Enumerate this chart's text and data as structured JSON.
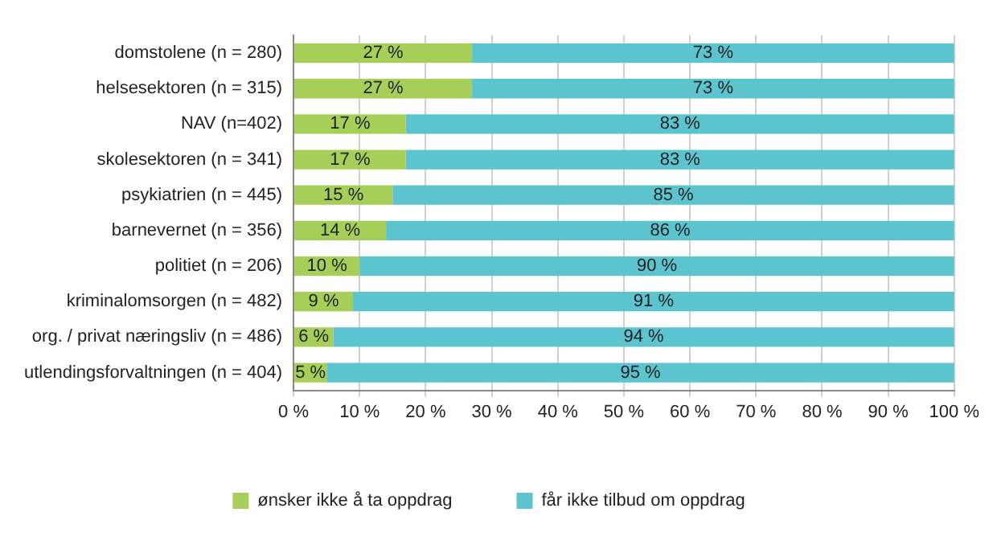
{
  "chart_data": {
    "type": "bar",
    "orientation": "horizontal",
    "stacked": true,
    "categories": [
      "domstolene (n = 280)",
      "helsesektoren (n = 315)",
      "NAV (n=402)",
      "skolesektoren (n = 341)",
      "psykiatrien (n = 445)",
      "barnevernet (n = 356)",
      "politiet (n = 206)",
      "kriminalomsorgen (n = 482)",
      "org. / privat næringsliv (n = 486)",
      "utlendingsforvaltningen (n = 404)"
    ],
    "series": [
      {
        "name": "ønsker ikke å ta oppdrag",
        "color": "#a6cf5a",
        "values": [
          27,
          27,
          17,
          17,
          15,
          14,
          10,
          9,
          6,
          5
        ],
        "value_labels": [
          "27 %",
          "27 %",
          "17 %",
          "17 %",
          "15 %",
          "14 %",
          "10 %",
          "9 %",
          "6 %",
          "5 %"
        ]
      },
      {
        "name": "får ikke tilbud om oppdrag",
        "color": "#5bc4cf",
        "values": [
          73,
          73,
          83,
          83,
          85,
          86,
          90,
          91,
          94,
          95
        ],
        "value_labels": [
          "73 %",
          "73 %",
          "83 %",
          "83 %",
          "85 %",
          "86 %",
          "90 %",
          "91 %",
          "94 %",
          "95 %"
        ]
      }
    ],
    "xlim": [
      0,
      100
    ],
    "xticks": [
      {
        "value": 0,
        "label": "0 %"
      },
      {
        "value": 10,
        "label": "10 %"
      },
      {
        "value": 20,
        "label": "20 %"
      },
      {
        "value": 30,
        "label": "30 %"
      },
      {
        "value": 40,
        "label": "40 %"
      },
      {
        "value": 50,
        "label": "50 %"
      },
      {
        "value": 60,
        "label": "60 %"
      },
      {
        "value": 70,
        "label": "70 %"
      },
      {
        "value": 80,
        "label": "80 %"
      },
      {
        "value": 90,
        "label": "90 %"
      },
      {
        "value": 100,
        "label": "100 %"
      }
    ],
    "grid": "x",
    "legend": "bottom"
  }
}
